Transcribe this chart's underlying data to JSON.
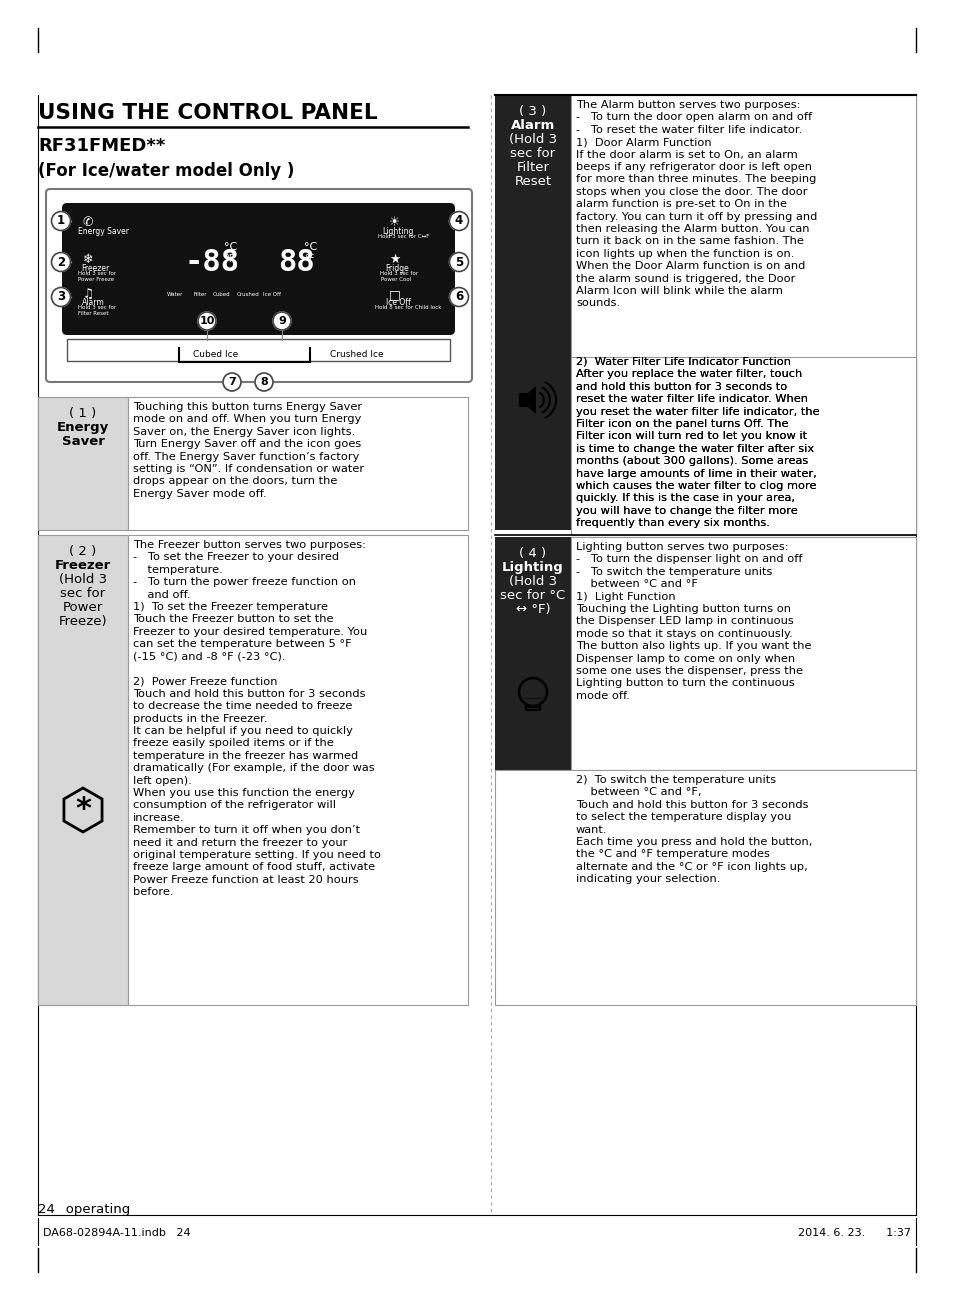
{
  "bg_color": "#ffffff",
  "title": "USING THE CONTROL PANEL",
  "subtitle1": "RF31FMED**",
  "subtitle2": "(For Ice/water model Only )",
  "page_label": "24_ operating",
  "footer_left": "DA68-02894A-11.indb   24",
  "footer_right": "2014. 6. 23.      1:37",
  "energy_saver_text": "Touching this button turns Energy Saver\nmode on and off. When you turn Energy\nSaver on, the Energy Saver icon lights.\nTurn Energy Saver off and the icon goes\noff. The Energy Saver function’s factory\nsetting is “ON”. If condensation or water\ndrops appear on the doors, turn the\nEnergy Saver mode off.",
  "freezer_text": "The Freezer button serves two purposes:\n-   To set the Freezer to your desired\n    temperature.\n-   To turn the power freeze function on\n    and off.\n1)  To set the Freezer temperature\nTouch the Freezer button to set the\nFreezer to your desired temperature. You\ncan set the temperature between 5 °F\n(-15 °C) and -8 °F (-23 °C).\n\n2)  Power Freeze function\nTouch and hold this button for 3 seconds\nto decrease the time needed to freeze\nproducts in the Freezer.\nIt can be helpful if you need to quickly\nfreeze easily spoiled items or if the\ntemperature in the freezer has warmed\ndramatically (For example, if the door was\nleft open).\nWhen you use this function the energy\nconsumption of the refrigerator will\nincrease.\nRemember to turn it off when you don’t\nneed it and return the freezer to your\noriginal temperature setting. If you need to\nfreeze large amount of food stuff, activate\nPower Freeze function at least 20 hours\nbefore.",
  "alarm_text1": "The Alarm button serves two purposes:\n-   To turn the door open alarm on and off\n-   To reset the water filter life indicator.\n1)  Door Alarm Function\nIf the door alarm is set to On, an alarm\nbeeps if any refrigerator door is left open\nfor more than three minutes. The beeping\nstops when you close the door. The door\nalarm function is pre-set to On in the\nfactory. You can turn it off by pressing and\nthen releasing the Alarm button. You can\nturn it back on in the same fashion. The\nicon lights up when the function is on.\nWhen the Door Alarm function is on and\nthe alarm sound is triggered, the Door\nAlarm Icon will blink while the alarm\nsounds.",
  "alarm_text2": "2)  Water Filter Life Indicator Function\nAfter you replace the water filter, touch\nand hold this button for 3 seconds to\nreset the water filter life indicator. When\nyou reset the water filter life indicator, the\nFilter icon on the panel turns Off. The\nFilter icon will turn red to let you know it\nis time to change the water filter after six\nmonths (about 300 gallons). Some areas\nhave large amounts of lime in their water,\nwhich causes the water filter to clog more\nquickly. If this is the case in your area,\nyou will have to change the filter more\nfrequently than every six months.",
  "lighting_text1": "Lighting button serves two purposes:\n-   To turn the dispenser light on and off\n-   To switch the temperature units\n    between °C and °F\n1)  Light Function\nTouching the Lighting button turns on\nthe Dispenser LED lamp in continuous\nmode so that it stays on continuously.\nThe button also lights up. If you want the\nDispenser lamp to come on only when\nsome one uses the dispenser, press the\nLighting button to turn the continuous\nmode off.",
  "lighting_text2": "2)  To switch the temperature units\n    between °C and °F,\nTouch and hold this button for 3 seconds\nto select the temperature display you\nwant.\nEach time you press and hold the button,\nthe °C and °F temperature modes\nalternate and the °C or °F icon lights up,\nindicating your selection."
}
